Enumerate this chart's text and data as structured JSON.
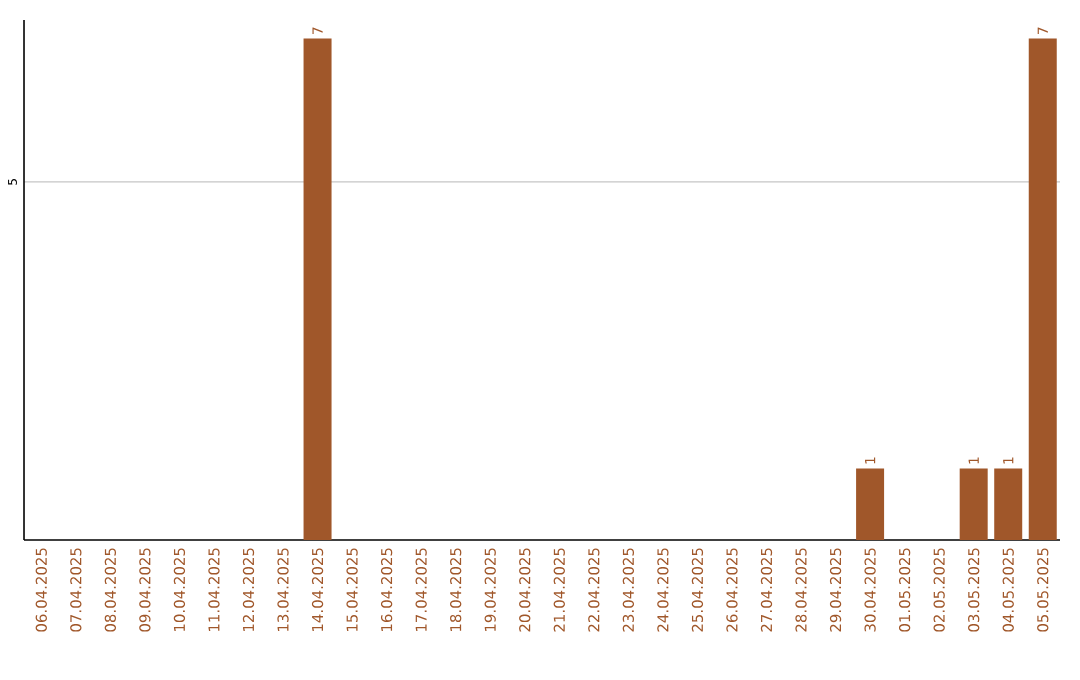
{
  "chart_data": {
    "type": "bar",
    "categories": [
      "06.04.2025",
      "07.04.2025",
      "08.04.2025",
      "09.04.2025",
      "10.04.2025",
      "11.04.2025",
      "12.04.2025",
      "13.04.2025",
      "14.04.2025",
      "15.04.2025",
      "16.04.2025",
      "17.04.2025",
      "18.04.2025",
      "19.04.2025",
      "20.04.2025",
      "21.04.2025",
      "22.04.2025",
      "23.04.2025",
      "24.04.2025",
      "25.04.2025",
      "26.04.2025",
      "27.04.2025",
      "28.04.2025",
      "29.04.2025",
      "30.04.2025",
      "01.05.2025",
      "02.05.2025",
      "03.05.2025",
      "04.05.2025",
      "05.05.2025"
    ],
    "values": [
      0,
      0,
      0,
      0,
      0,
      0,
      0,
      0,
      7,
      0,
      0,
      0,
      0,
      0,
      0,
      0,
      0,
      0,
      0,
      0,
      0,
      0,
      0,
      0,
      1,
      0,
      0,
      1,
      1,
      7
    ],
    "value_labels": [
      null,
      null,
      null,
      null,
      null,
      null,
      null,
      null,
      "7",
      null,
      null,
      null,
      null,
      null,
      null,
      null,
      null,
      null,
      null,
      null,
      null,
      null,
      null,
      null,
      "1",
      null,
      null,
      "1",
      "1",
      "7"
    ],
    "color": "#a0572a",
    "ylim": [
      0,
      7.26
    ],
    "yticks": [
      5
    ],
    "grid": "y"
  }
}
